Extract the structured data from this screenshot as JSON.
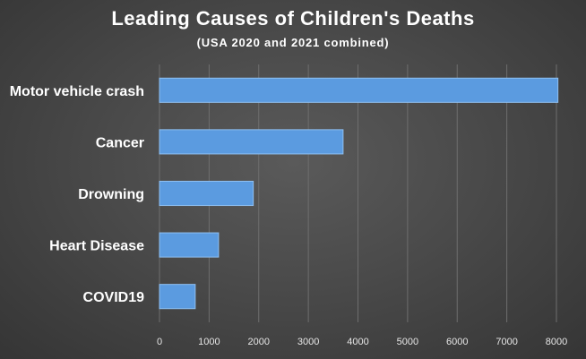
{
  "chart_data": {
    "type": "bar",
    "orientation": "horizontal",
    "title": "Leading Causes of Children's Deaths",
    "subtitle": "(USA 2020 and 2021 combined)",
    "xlabel": "",
    "ylabel": "",
    "categories": [
      "Motor vehicle crash",
      "Cancer",
      "Drowning",
      "Heart Disease",
      "COVID19"
    ],
    "values": [
      8030,
      3700,
      1890,
      1190,
      720
    ],
    "xlim": [
      0,
      8000
    ],
    "xticks": [
      "0",
      "1000",
      "2000",
      "3000",
      "4000",
      "5000",
      "6000",
      "7000",
      "8000"
    ],
    "grid": true,
    "legend": "none",
    "colors": {
      "bar_fill": "#5b9be0",
      "bar_stroke": "#8fc0f2",
      "grid": "#6e6e6e",
      "background": "#4a4a4a"
    }
  }
}
